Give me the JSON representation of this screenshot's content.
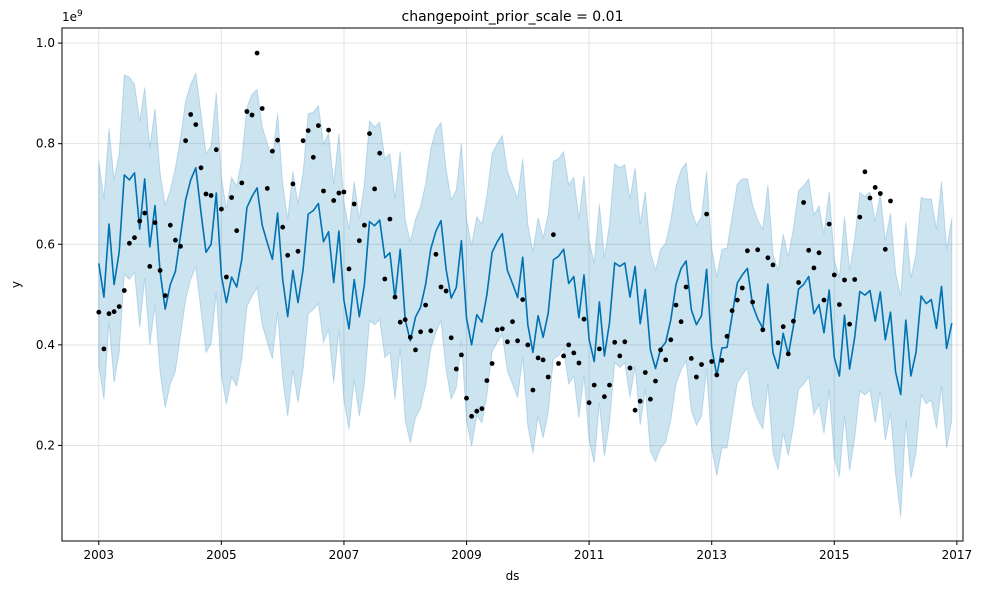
{
  "chart_data": {
    "type": "line",
    "title": "changepoint_prior_scale = 0.01",
    "xlabel": "ds",
    "ylabel": "y",
    "y_multiplier_label": "1e9",
    "xlim": [
      2002.4,
      2017.1
    ],
    "ylim": [
      0.01,
      1.03
    ],
    "x_ticks": [
      2003,
      2005,
      2007,
      2009,
      2011,
      2013,
      2015,
      2017
    ],
    "x_tick_labels": [
      "2003",
      "2005",
      "2007",
      "2009",
      "2011",
      "2013",
      "2015",
      "2017"
    ],
    "y_ticks": [
      0.2,
      0.4,
      0.6,
      0.8,
      1.0
    ],
    "y_tick_labels": [
      "0.2",
      "0.4",
      "0.6",
      "0.8",
      "1.0"
    ],
    "grid": true,
    "legend": "none",
    "colors": {
      "forecast_line": "#0072B2",
      "uncertainty_band": "#0072B2",
      "observed_points": "#000000",
      "grid": "#e3e3e3"
    },
    "series": [
      {
        "name": "observed",
        "kind": "scatter",
        "x": [
          2003.0,
          2003.083,
          2003.167,
          2003.25,
          2003.333,
          2003.417,
          2003.5,
          2003.583,
          2003.667,
          2003.75,
          2003.833,
          2003.917,
          2004.0,
          2004.083,
          2004.167,
          2004.25,
          2004.333,
          2004.417,
          2004.5,
          2004.583,
          2004.667,
          2004.75,
          2004.833,
          2004.917,
          2005.0,
          2005.083,
          2005.167,
          2005.25,
          2005.333,
          2005.417,
          2005.5,
          2005.583,
          2005.667,
          2005.75,
          2005.833,
          2005.917,
          2006.0,
          2006.083,
          2006.167,
          2006.25,
          2006.333,
          2006.417,
          2006.5,
          2006.583,
          2006.667,
          2006.75,
          2006.833,
          2006.917,
          2007.0,
          2007.083,
          2007.167,
          2007.25,
          2007.333,
          2007.417,
          2007.5,
          2007.583,
          2007.667,
          2007.75,
          2007.833,
          2007.917,
          2008.0,
          2008.083,
          2008.167,
          2008.25,
          2008.333,
          2008.417,
          2008.5,
          2008.583,
          2008.667,
          2008.75,
          2008.833,
          2008.917,
          2009.0,
          2009.083,
          2009.167,
          2009.25,
          2009.333,
          2009.417,
          2009.5,
          2009.583,
          2009.667,
          2009.75,
          2009.833,
          2009.917,
          2010.0,
          2010.083,
          2010.167,
          2010.25,
          2010.333,
          2010.417,
          2010.5,
          2010.583,
          2010.667,
          2010.75,
          2010.833,
          2010.917,
          2011.0,
          2011.083,
          2011.167,
          2011.25,
          2011.333,
          2011.417,
          2011.5,
          2011.583,
          2011.667,
          2011.75,
          2011.833,
          2011.917,
          2012.0,
          2012.083,
          2012.167,
          2012.25,
          2012.333,
          2012.417,
          2012.5,
          2012.583,
          2012.667,
          2012.75,
          2012.833,
          2012.917,
          2013.0,
          2013.083,
          2013.167,
          2013.25,
          2013.333,
          2013.417,
          2013.5,
          2013.583,
          2013.667,
          2013.75,
          2013.833,
          2013.917,
          2014.0,
          2014.083,
          2014.167,
          2014.25,
          2014.333,
          2014.417,
          2014.5,
          2014.583,
          2014.667,
          2014.75,
          2014.833,
          2014.917,
          2015.0,
          2015.083,
          2015.167,
          2015.25,
          2015.333,
          2015.417,
          2015.5,
          2015.583,
          2015.667,
          2015.75,
          2015.833,
          2015.917
        ],
        "y": [
          0.465,
          0.392,
          0.462,
          0.466,
          0.476,
          0.508,
          0.602,
          0.613,
          0.646,
          0.662,
          0.556,
          0.643,
          0.548,
          0.498,
          0.638,
          0.608,
          0.596,
          0.806,
          0.858,
          0.838,
          0.752,
          0.7,
          0.697,
          0.788,
          0.67,
          0.535,
          0.693,
          0.627,
          0.722,
          0.864,
          0.857,
          0.98,
          0.87,
          0.711,
          0.785,
          0.807,
          0.634,
          0.578,
          0.72,
          0.586,
          0.806,
          0.826,
          0.773,
          0.836,
          0.706,
          0.827,
          0.687,
          0.702,
          0.704,
          0.551,
          0.68,
          0.607,
          0.638,
          0.82,
          0.71,
          0.781,
          0.531,
          0.65,
          0.495,
          0.445,
          0.45,
          0.415,
          0.39,
          0.426,
          0.479,
          0.428,
          0.58,
          0.515,
          0.507,
          0.414,
          0.352,
          0.38,
          0.294,
          0.258,
          0.268,
          0.273,
          0.329,
          0.363,
          0.43,
          0.432,
          0.406,
          0.446,
          0.408,
          0.49,
          0.4,
          0.31,
          0.374,
          0.37,
          0.336,
          0.619,
          0.363,
          0.378,
          0.4,
          0.384,
          0.364,
          0.451,
          0.285,
          0.32,
          0.392,
          0.297,
          0.32,
          0.405,
          0.378,
          0.406,
          0.354,
          0.27,
          0.288,
          0.345,
          0.292,
          0.328,
          0.39,
          0.37,
          0.41,
          0.479,
          0.446,
          0.515,
          0.373,
          0.336,
          0.361,
          0.66,
          0.367,
          0.34,
          0.369,
          0.417,
          0.468,
          0.489,
          0.513,
          0.587,
          0.485,
          0.589,
          0.43,
          0.573,
          0.559,
          0.404,
          0.436,
          0.382,
          0.447,
          0.524,
          0.683,
          0.588,
          0.553,
          0.583,
          0.489,
          0.64,
          0.539,
          0.48,
          0.529,
          0.441,
          0.53,
          0.654,
          0.744,
          0.692,
          0.713,
          0.701,
          0.59,
          0.686
        ]
      },
      {
        "name": "forecast",
        "kind": "line",
        "x": [
          2003.0,
          2003.083,
          2003.167,
          2003.25,
          2003.333,
          2003.417,
          2003.5,
          2003.583,
          2003.667,
          2003.75,
          2003.833,
          2003.917,
          2004.0,
          2004.083,
          2004.167,
          2004.25,
          2004.333,
          2004.417,
          2004.5,
          2004.583,
          2004.667,
          2004.75,
          2004.833,
          2004.917,
          2005.0,
          2005.083,
          2005.167,
          2005.25,
          2005.333,
          2005.417,
          2005.5,
          2005.583,
          2005.667,
          2005.75,
          2005.833,
          2005.917,
          2006.0,
          2006.083,
          2006.167,
          2006.25,
          2006.333,
          2006.417,
          2006.5,
          2006.583,
          2006.667,
          2006.75,
          2006.833,
          2006.917,
          2007.0,
          2007.083,
          2007.167,
          2007.25,
          2007.333,
          2007.417,
          2007.5,
          2007.583,
          2007.667,
          2007.75,
          2007.833,
          2007.917,
          2008.0,
          2008.083,
          2008.167,
          2008.25,
          2008.333,
          2008.417,
          2008.5,
          2008.583,
          2008.667,
          2008.75,
          2008.833,
          2008.917,
          2009.0,
          2009.083,
          2009.167,
          2009.25,
          2009.333,
          2009.417,
          2009.5,
          2009.583,
          2009.667,
          2009.75,
          2009.833,
          2009.917,
          2010.0,
          2010.083,
          2010.167,
          2010.25,
          2010.333,
          2010.417,
          2010.5,
          2010.583,
          2010.667,
          2010.75,
          2010.833,
          2010.917,
          2011.0,
          2011.083,
          2011.167,
          2011.25,
          2011.333,
          2011.417,
          2011.5,
          2011.583,
          2011.667,
          2011.75,
          2011.833,
          2011.917,
          2012.0,
          2012.083,
          2012.167,
          2012.25,
          2012.333,
          2012.417,
          2012.5,
          2012.583,
          2012.667,
          2012.75,
          2012.833,
          2012.917,
          2013.0,
          2013.083,
          2013.167,
          2013.25,
          2013.333,
          2013.417,
          2013.5,
          2013.583,
          2013.667,
          2013.75,
          2013.833,
          2013.917,
          2014.0,
          2014.083,
          2014.167,
          2014.25,
          2014.333,
          2014.417,
          2014.5,
          2014.583,
          2014.667,
          2014.75,
          2014.833,
          2014.917,
          2015.0,
          2015.083,
          2015.167,
          2015.25,
          2015.333,
          2015.417,
          2015.5,
          2015.583,
          2015.667,
          2015.75,
          2015.833,
          2015.917,
          2016.0,
          2016.083,
          2016.167,
          2016.25,
          2016.333,
          2016.417,
          2016.5,
          2016.583,
          2016.667,
          2016.75,
          2016.833,
          2016.917
        ],
        "y": [
          0.562,
          0.495,
          0.64,
          0.52,
          0.585,
          0.738,
          0.728,
          0.742,
          0.63,
          0.73,
          0.595,
          0.677,
          0.545,
          0.471,
          0.52,
          0.546,
          0.617,
          0.688,
          0.728,
          0.752,
          0.663,
          0.584,
          0.6,
          0.702,
          0.537,
          0.484,
          0.535,
          0.515,
          0.57,
          0.673,
          0.695,
          0.712,
          0.638,
          0.603,
          0.57,
          0.662,
          0.53,
          0.456,
          0.548,
          0.484,
          0.55,
          0.66,
          0.667,
          0.681,
          0.605,
          0.625,
          0.524,
          0.626,
          0.489,
          0.432,
          0.53,
          0.456,
          0.52,
          0.645,
          0.637,
          0.648,
          0.573,
          0.583,
          0.492,
          0.59,
          0.45,
          0.408,
          0.455,
          0.475,
          0.52,
          0.591,
          0.626,
          0.647,
          0.55,
          0.493,
          0.514,
          0.607,
          0.453,
          0.4,
          0.46,
          0.445,
          0.5,
          0.584,
          0.605,
          0.621,
          0.548,
          0.522,
          0.494,
          0.574,
          0.44,
          0.385,
          0.458,
          0.415,
          0.463,
          0.569,
          0.576,
          0.59,
          0.522,
          0.536,
          0.454,
          0.539,
          0.411,
          0.367,
          0.485,
          0.378,
          0.444,
          0.563,
          0.556,
          0.563,
          0.495,
          0.556,
          0.442,
          0.51,
          0.39,
          0.353,
          0.392,
          0.405,
          0.45,
          0.52,
          0.552,
          0.567,
          0.47,
          0.44,
          0.458,
          0.55,
          0.395,
          0.339,
          0.394,
          0.395,
          0.458,
          0.523,
          0.539,
          0.552,
          0.479,
          0.452,
          0.433,
          0.521,
          0.384,
          0.353,
          0.423,
          0.38,
          0.437,
          0.511,
          0.52,
          0.536,
          0.462,
          0.48,
          0.424,
          0.509,
          0.375,
          0.338,
          0.459,
          0.352,
          0.415,
          0.506,
          0.499,
          0.508,
          0.447,
          0.505,
          0.41,
          0.465,
          0.346,
          0.301,
          0.449,
          0.338,
          0.385,
          0.497,
          0.482,
          0.49,
          0.433,
          0.516,
          0.393,
          0.443
        ]
      },
      {
        "name": "uncertainty_upper",
        "kind": "band_upper",
        "values": [
          0.765,
          0.69,
          0.83,
          0.728,
          0.78,
          0.937,
          0.932,
          0.918,
          0.845,
          0.912,
          0.791,
          0.87,
          0.742,
          0.677,
          0.708,
          0.752,
          0.81,
          0.885,
          0.918,
          0.94,
          0.86,
          0.78,
          0.795,
          0.902,
          0.733,
          0.67,
          0.733,
          0.715,
          0.77,
          0.872,
          0.898,
          0.908,
          0.834,
          0.8,
          0.77,
          0.86,
          0.72,
          0.65,
          0.745,
          0.68,
          0.742,
          0.86,
          0.862,
          0.876,
          0.8,
          0.82,
          0.72,
          0.82,
          0.685,
          0.63,
          0.725,
          0.65,
          0.72,
          0.845,
          0.833,
          0.843,
          0.77,
          0.78,
          0.69,
          0.785,
          0.65,
          0.605,
          0.65,
          0.675,
          0.72,
          0.79,
          0.828,
          0.842,
          0.75,
          0.688,
          0.708,
          0.8,
          0.65,
          0.598,
          0.655,
          0.64,
          0.697,
          0.78,
          0.8,
          0.816,
          0.745,
          0.718,
          0.69,
          0.77,
          0.64,
          0.584,
          0.653,
          0.612,
          0.66,
          0.765,
          0.77,
          0.784,
          0.718,
          0.733,
          0.65,
          0.736,
          0.608,
          0.562,
          0.68,
          0.574,
          0.64,
          0.76,
          0.752,
          0.758,
          0.69,
          0.752,
          0.64,
          0.705,
          0.585,
          0.548,
          0.59,
          0.602,
          0.648,
          0.715,
          0.748,
          0.762,
          0.668,
          0.638,
          0.654,
          0.745,
          0.592,
          0.535,
          0.59,
          0.592,
          0.655,
          0.72,
          0.73,
          0.73,
          0.678,
          0.648,
          0.63,
          0.718,
          0.58,
          0.548,
          0.62,
          0.575,
          0.632,
          0.706,
          0.716,
          0.73,
          0.658,
          0.676,
          0.62,
          0.705,
          0.57,
          0.533,
          0.655,
          0.548,
          0.61,
          0.703,
          0.695,
          0.704,
          0.645,
          0.7,
          0.607,
          0.661,
          0.544,
          0.496,
          0.644,
          0.533,
          0.58,
          0.693,
          0.69,
          0.69,
          0.63,
          0.725,
          0.59,
          0.652
        ]
      },
      {
        "name": "uncertainty_lower",
        "kind": "band_lower",
        "values": [
          0.36,
          0.292,
          0.446,
          0.325,
          0.385,
          0.54,
          0.53,
          0.545,
          0.435,
          0.533,
          0.4,
          0.48,
          0.345,
          0.275,
          0.322,
          0.348,
          0.418,
          0.49,
          0.53,
          0.555,
          0.468,
          0.385,
          0.402,
          0.505,
          0.338,
          0.282,
          0.336,
          0.318,
          0.372,
          0.476,
          0.497,
          0.514,
          0.44,
          0.405,
          0.372,
          0.465,
          0.332,
          0.258,
          0.35,
          0.285,
          0.352,
          0.462,
          0.47,
          0.482,
          0.405,
          0.43,
          0.324,
          0.43,
          0.29,
          0.232,
          0.332,
          0.258,
          0.322,
          0.448,
          0.44,
          0.45,
          0.375,
          0.385,
          0.292,
          0.393,
          0.25,
          0.205,
          0.255,
          0.275,
          0.32,
          0.392,
          0.425,
          0.448,
          0.35,
          0.292,
          0.315,
          0.408,
          0.25,
          0.198,
          0.26,
          0.245,
          0.3,
          0.386,
          0.405,
          0.42,
          0.348,
          0.322,
          0.295,
          0.375,
          0.24,
          0.185,
          0.258,
          0.215,
          0.265,
          0.372,
          0.378,
          0.393,
          0.322,
          0.338,
          0.255,
          0.34,
          0.21,
          0.165,
          0.285,
          0.178,
          0.245,
          0.365,
          0.355,
          0.365,
          0.295,
          0.358,
          0.24,
          0.312,
          0.188,
          0.168,
          0.195,
          0.207,
          0.25,
          0.322,
          0.35,
          0.368,
          0.27,
          0.24,
          0.258,
          0.352,
          0.195,
          0.14,
          0.195,
          0.195,
          0.26,
          0.325,
          0.34,
          0.354,
          0.28,
          0.252,
          0.233,
          0.322,
          0.185,
          0.152,
          0.225,
          0.18,
          0.238,
          0.312,
          0.322,
          0.337,
          0.262,
          0.282,
          0.224,
          0.31,
          0.175,
          0.138,
          0.26,
          0.15,
          0.215,
          0.308,
          0.3,
          0.31,
          0.245,
          0.308,
          0.21,
          0.265,
          0.143,
          0.058,
          0.25,
          0.135,
          0.185,
          0.3,
          0.283,
          0.29,
          0.234,
          0.318,
          0.195,
          0.25
        ]
      }
    ]
  }
}
